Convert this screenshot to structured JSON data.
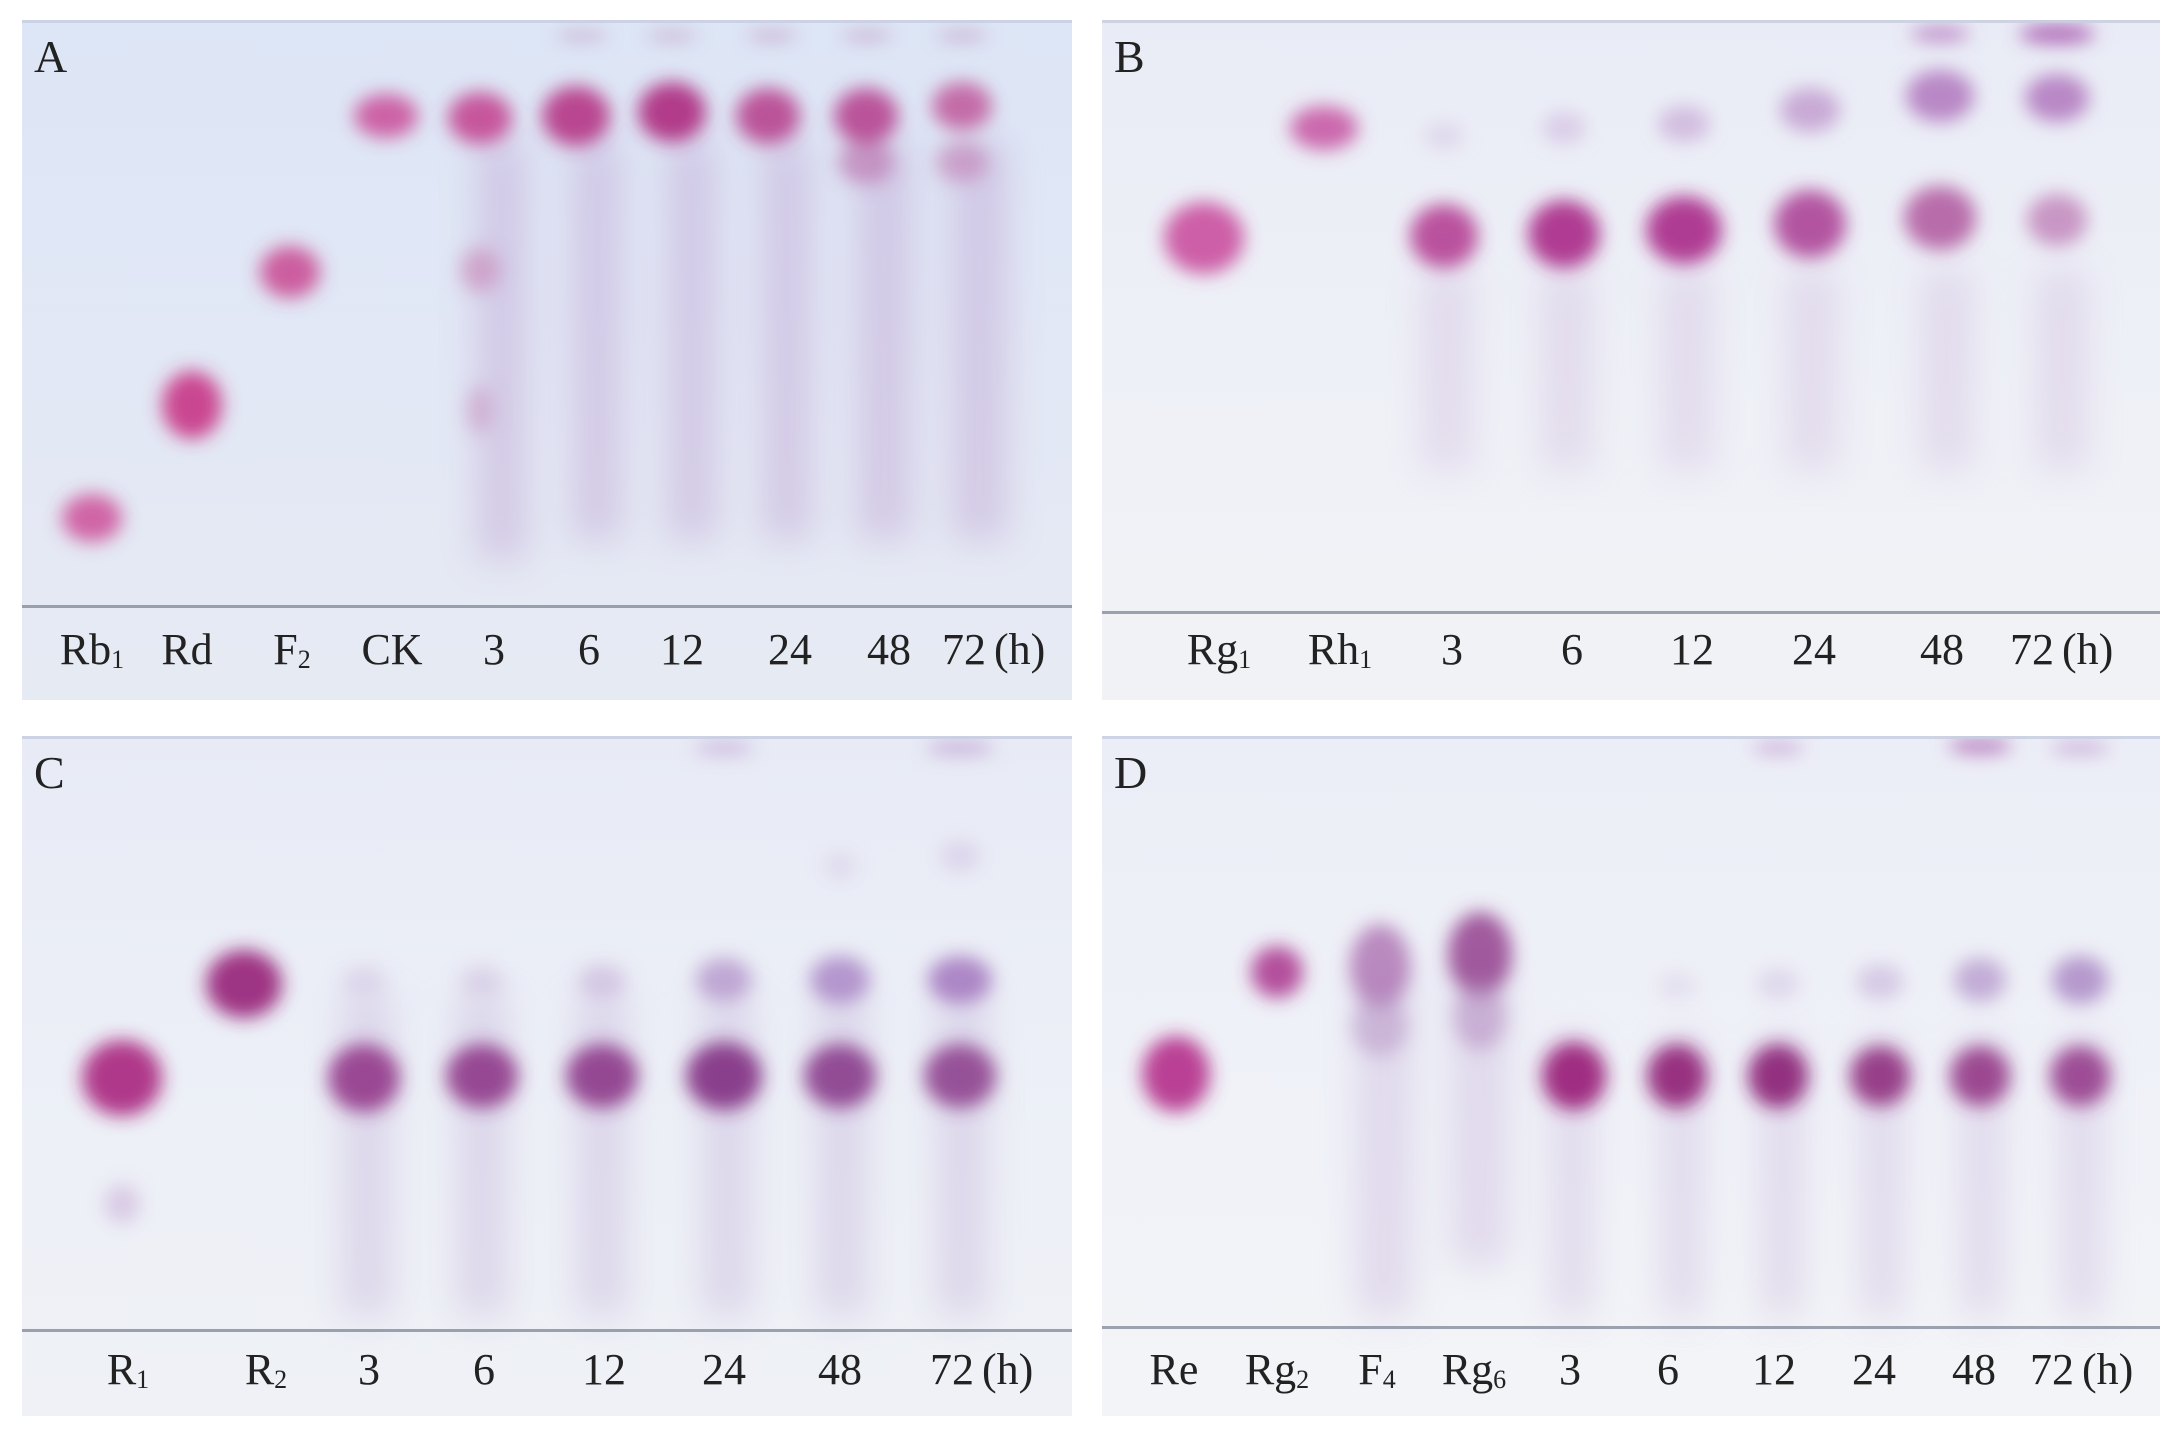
{
  "figure": {
    "background": "#ffffff",
    "spot_color": "#b0318a",
    "plate_color": "#e6ebf6"
  },
  "panels": [
    {
      "letter": "A",
      "unit": "(h)",
      "lanes": [
        {
          "name": "Rb",
          "sub": "1"
        },
        {
          "name": "Rd",
          "sub": ""
        },
        {
          "name": "F",
          "sub": "2"
        },
        {
          "name": "CK",
          "sub": ""
        },
        {
          "name": "3",
          "sub": ""
        },
        {
          "name": "6",
          "sub": ""
        },
        {
          "name": "12",
          "sub": ""
        },
        {
          "name": "24",
          "sub": ""
        },
        {
          "name": "48",
          "sub": ""
        },
        {
          "name": "72",
          "sub": ""
        }
      ]
    },
    {
      "letter": "B",
      "unit": "(h)",
      "lanes": [
        {
          "name": "Rg",
          "sub": "1"
        },
        {
          "name": "Rh",
          "sub": "1"
        },
        {
          "name": "3",
          "sub": ""
        },
        {
          "name": "6",
          "sub": ""
        },
        {
          "name": "12",
          "sub": ""
        },
        {
          "name": "24",
          "sub": ""
        },
        {
          "name": "48",
          "sub": ""
        },
        {
          "name": "72",
          "sub": ""
        }
      ]
    },
    {
      "letter": "C",
      "unit": "(h)",
      "lanes": [
        {
          "name": "R",
          "sub": "1"
        },
        {
          "name": "R",
          "sub": "2"
        },
        {
          "name": "3",
          "sub": ""
        },
        {
          "name": "6",
          "sub": ""
        },
        {
          "name": "12",
          "sub": ""
        },
        {
          "name": "24",
          "sub": ""
        },
        {
          "name": "48",
          "sub": ""
        },
        {
          "name": "72",
          "sub": ""
        }
      ]
    },
    {
      "letter": "D",
      "unit": "(h)",
      "lanes": [
        {
          "name": "Re",
          "sub": ""
        },
        {
          "name": "Rg",
          "sub": "2"
        },
        {
          "name": "F",
          "sub": "4"
        },
        {
          "name": "Rg",
          "sub": "6"
        },
        {
          "name": "3",
          "sub": ""
        },
        {
          "name": "6",
          "sub": ""
        },
        {
          "name": "12",
          "sub": ""
        },
        {
          "name": "24",
          "sub": ""
        },
        {
          "name": "48",
          "sub": ""
        },
        {
          "name": "72",
          "sub": ""
        }
      ]
    }
  ]
}
